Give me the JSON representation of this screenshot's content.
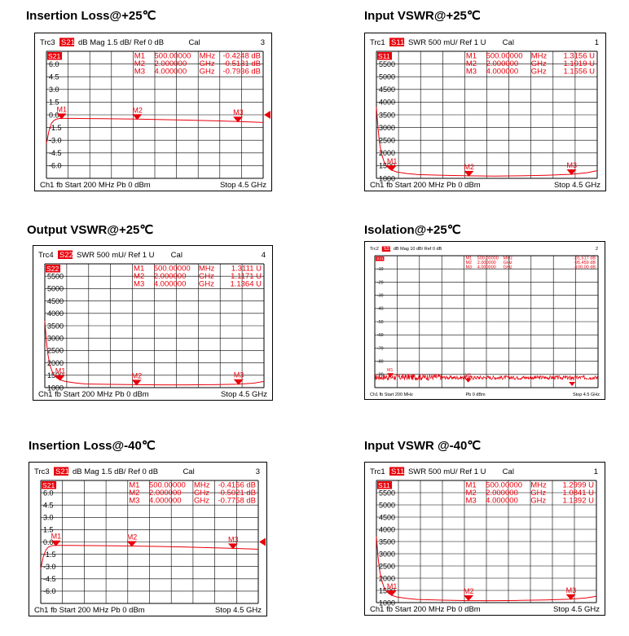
{
  "chart_data": [
    {
      "type": "line",
      "title": "Insertion Loss@+25℃",
      "header": {
        "trace": "Trc3",
        "param": "S21",
        "format": "dB Mag",
        "scale": "1.5 dB/",
        "ref": "Ref 0 dB",
        "cal": "Cal",
        "index": "3"
      },
      "ytick_labels": [
        "6.0",
        "4.5",
        "3.0",
        "1.5",
        "0.0",
        "-1.5",
        "-3.0",
        "-4.5",
        "-6.0"
      ],
      "ylim": [
        -7.5,
        7.5
      ],
      "xlim": [
        200,
        4500
      ],
      "footer": {
        "left": "Ch1  fb  Start  200 MHz  Pb   0 dBm",
        "right": "Stop  4.5 GHz"
      },
      "markers": [
        {
          "name": "M1",
          "freq": "500.00000",
          "unit": "MHz",
          "value": "-0.4248 dB",
          "x": 500,
          "y": -0.42
        },
        {
          "name": "M2",
          "freq": "2.000000",
          "unit": "GHz",
          "value": "-0.5131 dB",
          "x": 2000,
          "y": -0.51
        },
        {
          "name": "M3",
          "freq": "4.000000",
          "unit": "GHz",
          "value": "-0.7936 dB",
          "x": 4000,
          "y": -0.79
        }
      ],
      "series": [
        {
          "x": [
            200,
            250,
            300,
            350,
            400,
            450,
            500,
            700,
            1000,
            1500,
            2000,
            2500,
            3000,
            3500,
            4000,
            4300,
            4500
          ],
          "y": [
            -3.4,
            -1.9,
            -1.0,
            -0.65,
            -0.5,
            -0.45,
            -0.42,
            -0.42,
            -0.44,
            -0.47,
            -0.51,
            -0.56,
            -0.62,
            -0.7,
            -0.79,
            -0.85,
            -0.9
          ]
        }
      ]
    },
    {
      "type": "line",
      "title": "Input VSWR@+25℃",
      "header": {
        "trace": "Trc1",
        "param": "S11",
        "format": "SWR",
        "scale": "500 mU/",
        "ref": "Ref 1 U",
        "cal": "Cal",
        "index": "1"
      },
      "ytick_labels": [
        "5500",
        "5000",
        "4500",
        "4000",
        "3500",
        "3000",
        "2500",
        "2000",
        "1500",
        "1000"
      ],
      "ylim": [
        1,
        6
      ],
      "xlim": [
        200,
        4500
      ],
      "footer": {
        "left": "Ch1  fb  Start  200 MHz  Pb   0 dBm",
        "right": "Stop  4.5 GHz"
      },
      "markers": [
        {
          "name": "M1",
          "freq": "500.00000",
          "unit": "MHz",
          "value": "1.3156 U",
          "x": 500,
          "y": 1.32
        },
        {
          "name": "M2",
          "freq": "2.000000",
          "unit": "GHz",
          "value": "1.1019 U",
          "x": 2000,
          "y": 1.1
        },
        {
          "name": "M3",
          "freq": "4.000000",
          "unit": "GHz",
          "value": "1.1556 U",
          "x": 4000,
          "y": 1.16
        }
      ],
      "series": [
        {
          "x": [
            200,
            230,
            260,
            300,
            350,
            400,
            450,
            500,
            600,
            800,
            1000,
            1500,
            2000,
            2500,
            3000,
            3500,
            4000,
            4300,
            4500
          ],
          "y": [
            3.8,
            3.0,
            2.4,
            1.95,
            1.65,
            1.48,
            1.38,
            1.32,
            1.25,
            1.19,
            1.15,
            1.12,
            1.1,
            1.09,
            1.1,
            1.12,
            1.16,
            1.22,
            1.3
          ]
        }
      ]
    },
    {
      "type": "line",
      "title": "Output VSWR@+25℃",
      "header": {
        "trace": "Trc4",
        "param": "S22",
        "format": "SWR",
        "scale": "500 mU/",
        "ref": "Ref 1 U",
        "cal": "Cal",
        "index": "4"
      },
      "ytick_labels": [
        "5500",
        "5000",
        "4500",
        "4000",
        "3500",
        "3000",
        "2500",
        "2000",
        "1500",
        "1000"
      ],
      "ylim": [
        1,
        6
      ],
      "xlim": [
        200,
        4500
      ],
      "footer": {
        "left": "Ch1  fb  Start  200 MHz  Pb   0 dBm",
        "right": "Stop  4.5 GHz"
      },
      "markers": [
        {
          "name": "M1",
          "freq": "500.00000",
          "unit": "MHz",
          "value": "1.3111 U",
          "x": 500,
          "y": 1.31
        },
        {
          "name": "M2",
          "freq": "2.000000",
          "unit": "GHz",
          "value": "1.1171 U",
          "x": 2000,
          "y": 1.12
        },
        {
          "name": "M3",
          "freq": "4.000000",
          "unit": "GHz",
          "value": "1.1364 U",
          "x": 4000,
          "y": 1.14
        }
      ],
      "series": [
        {
          "x": [
            200,
            230,
            260,
            300,
            350,
            400,
            450,
            500,
            600,
            800,
            1000,
            1500,
            2000,
            2500,
            3000,
            3500,
            4000,
            4300,
            4500
          ],
          "y": [
            3.7,
            2.9,
            2.35,
            1.9,
            1.62,
            1.46,
            1.37,
            1.31,
            1.25,
            1.19,
            1.15,
            1.13,
            1.12,
            1.11,
            1.11,
            1.12,
            1.14,
            1.18,
            1.25
          ]
        }
      ]
    },
    {
      "type": "line",
      "title": "Isolation@+25℃",
      "header": {
        "trace": "Trc2",
        "param": "S31",
        "format": "dB Mag",
        "scale": "10 dB/",
        "ref": "Ref 0 dB",
        "cal": "",
        "index": "2"
      },
      "ytick_labels": [
        "-10",
        "-20",
        "-30",
        "-40",
        "-50",
        "-60",
        "-70",
        "-80",
        "-90"
      ],
      "ylim": [
        -100,
        0
      ],
      "xlim": [
        200,
        4500
      ],
      "footer": {
        "left": "Ch1  fb  Start  200 MHz",
        "mid": "Pb   0 dBm",
        "right": "Stop  4.5 GHz"
      },
      "markers": [
        {
          "name": "M1",
          "freq": "500.00000",
          "unit": "MHz",
          "value": "-91.517 dB",
          "x": 500,
          "y": -91.5
        },
        {
          "name": "M2",
          "freq": "2.000000",
          "unit": "GHz",
          "value": "-95.459 dB",
          "x": 2000,
          "y": -95.5
        },
        {
          "name": "M3",
          "freq": "4.000000",
          "unit": "GHz",
          "value": "-100.00 dB",
          "x": 4000,
          "y": -100
        }
      ],
      "series": [
        {
          "x": [],
          "y": [],
          "noise_floor_db": -93
        }
      ]
    },
    {
      "type": "line",
      "title": "Insertion Loss@-40℃",
      "header": {
        "trace": "Trc3",
        "param": "S21",
        "format": "dB Mag",
        "scale": "1.5 dB/",
        "ref": "Ref 0 dB",
        "cal": "Cal",
        "index": "3"
      },
      "ytick_labels": [
        "6.0",
        "4.5",
        "3.0",
        "1.5",
        "0.0",
        "-1.5",
        "-3.0",
        "-4.5",
        "-6.0"
      ],
      "ylim": [
        -7.5,
        7.5
      ],
      "xlim": [
        200,
        4500
      ],
      "footer": {
        "left": "Ch1  fb  Start  200 MHz  Pb   0 dBm",
        "right": "Stop  4.5 GHz"
      },
      "markers": [
        {
          "name": "M1",
          "freq": "500.00000",
          "unit": "MHz",
          "value": "-0.4166 dB",
          "x": 500,
          "y": -0.42
        },
        {
          "name": "M2",
          "freq": "2.000000",
          "unit": "GHz",
          "value": "-0.5021 dB",
          "x": 2000,
          "y": -0.5
        },
        {
          "name": "M3",
          "freq": "4.000000",
          "unit": "GHz",
          "value": "-0.7758 dB",
          "x": 4000,
          "y": -0.78
        }
      ],
      "series": [
        {
          "x": [
            200,
            250,
            300,
            350,
            400,
            450,
            500,
            700,
            1000,
            1500,
            2000,
            2500,
            3000,
            3500,
            4000,
            4300,
            4500
          ],
          "y": [
            -3.3,
            -1.8,
            -1.0,
            -0.62,
            -0.49,
            -0.44,
            -0.42,
            -0.42,
            -0.43,
            -0.46,
            -0.5,
            -0.55,
            -0.61,
            -0.69,
            -0.78,
            -0.84,
            -0.89
          ]
        }
      ]
    },
    {
      "type": "line",
      "title": "Input VSWR @-40℃",
      "header": {
        "trace": "Trc1",
        "param": "S11",
        "format": "SWR",
        "scale": "500 mU/",
        "ref": "Ref 1 U",
        "cal": "Cal",
        "index": "1"
      },
      "ytick_labels": [
        "5500",
        "5000",
        "4500",
        "4000",
        "3500",
        "3000",
        "2500",
        "2000",
        "1500",
        "1000"
      ],
      "ylim": [
        1,
        6
      ],
      "xlim": [
        200,
        4500
      ],
      "footer": {
        "left": "Ch1  fb  Start  200 MHz  Pb   0 dBm",
        "right": "Stop  4.5 GHz"
      },
      "markers": [
        {
          "name": "M1",
          "freq": "500.00000",
          "unit": "MHz",
          "value": "1.2999 U",
          "x": 500,
          "y": 1.3
        },
        {
          "name": "M2",
          "freq": "2.000000",
          "unit": "GHz",
          "value": "1.0841 U",
          "x": 2000,
          "y": 1.08
        },
        {
          "name": "M3",
          "freq": "4.000000",
          "unit": "GHz",
          "value": "1.1392 U",
          "x": 4000,
          "y": 1.14
        }
      ],
      "series": [
        {
          "x": [
            200,
            230,
            260,
            300,
            350,
            400,
            450,
            500,
            600,
            800,
            1000,
            1500,
            2000,
            2500,
            3000,
            3500,
            4000,
            4300,
            4500
          ],
          "y": [
            3.7,
            2.9,
            2.35,
            1.92,
            1.62,
            1.45,
            1.36,
            1.3,
            1.23,
            1.17,
            1.13,
            1.1,
            1.08,
            1.08,
            1.09,
            1.11,
            1.14,
            1.19,
            1.26
          ]
        }
      ]
    }
  ]
}
